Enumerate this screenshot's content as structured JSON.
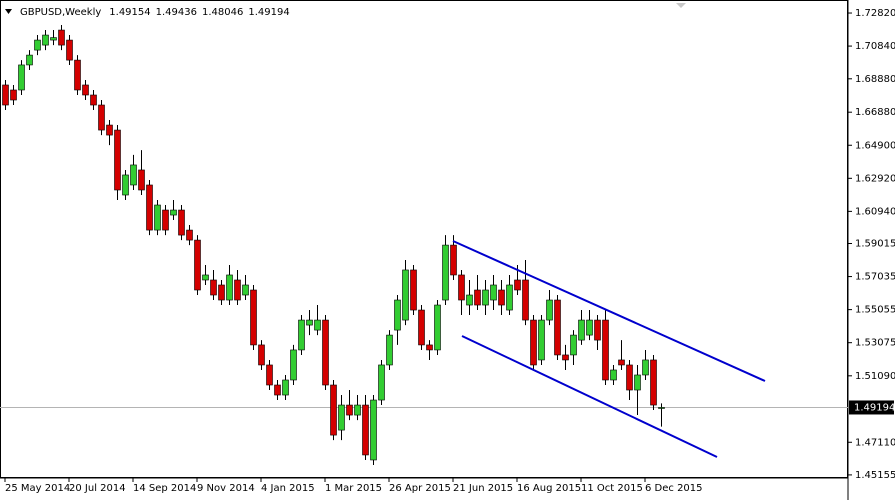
{
  "chart_data": {
    "type": "candlestick",
    "title": "GBPUSD,Weekly",
    "up_color": "#32cd32",
    "down_color": "#d40000",
    "categories": [
      "25 May 2014",
      null,
      null,
      null,
      null,
      null,
      null,
      null,
      "20 Jul 2014",
      null,
      null,
      null,
      null,
      null,
      null,
      null,
      "14 Sep 2014",
      null,
      null,
      null,
      null,
      null,
      null,
      null,
      "9 Nov 2014",
      null,
      null,
      null,
      null,
      null,
      null,
      null,
      "4 Jan 2015",
      null,
      null,
      null,
      null,
      null,
      null,
      null,
      "1 Mar 2015",
      null,
      null,
      null,
      null,
      null,
      null,
      null,
      "26 Apr 2015",
      null,
      null,
      null,
      null,
      null,
      null,
      null,
      "21 Jun 2015",
      null,
      null,
      null,
      null,
      null,
      null,
      null,
      "16 Aug 2015",
      null,
      null,
      null,
      null,
      null,
      null,
      null,
      "11 Oct 2015",
      null,
      null,
      null,
      null,
      null,
      null,
      null,
      "6 Dec 2015",
      null,
      null
    ],
    "open": [
      1.6851,
      1.6821,
      1.6821,
      1.6971,
      1.706,
      1.709,
      1.712,
      1.718,
      1.712,
      1.7,
      1.6851,
      1.6791,
      1.6731,
      1.6611,
      1.6581,
      1.6192,
      1.6252,
      1.6342,
      1.6252,
      1.5982,
      1.6102,
      1.6072,
      1.6102,
      1.5982,
      1.5922,
      1.5683,
      1.5683,
      1.5653,
      1.5563,
      1.5683,
      1.5593,
      1.5623,
      1.5294,
      1.5174,
      1.5054,
      1.4994,
      1.5084,
      1.5264,
      1.5413,
      1.5383,
      1.5443,
      1.5054,
      1.4784,
      1.4934,
      1.4874,
      1.4934,
      1.4605,
      1.4964,
      1.5174,
      1.5383,
      1.5443,
      1.5743,
      1.5503,
      1.5294,
      1.5264,
      1.5563,
      1.5892,
      1.5713,
      1.5533,
      1.5623,
      1.5533,
      1.5563,
      1.5623,
      1.5503,
      1.5683,
      1.5683,
      1.5443,
      1.5204,
      1.5443,
      1.5563,
      1.5234,
      1.5234,
      1.5323,
      1.5353,
      1.5443,
      1.5443,
      1.5084,
      1.5204,
      1.5174,
      1.5024,
      1.5114,
      1.5204,
      1.49154
    ],
    "high": [
      1.6881,
      1.6851,
      1.7,
      1.706,
      1.715,
      1.718,
      1.718,
      1.721,
      1.715,
      1.703,
      1.6881,
      1.6821,
      1.6761,
      1.6641,
      1.6611,
      1.6342,
      1.6432,
      1.6461,
      1.6282,
      1.6162,
      1.6132,
      1.6162,
      1.6132,
      1.6012,
      1.5952,
      1.5773,
      1.5743,
      1.5683,
      1.5773,
      1.5743,
      1.5713,
      1.5653,
      1.5323,
      1.5204,
      1.5084,
      1.5114,
      1.5294,
      1.5473,
      1.5503,
      1.5533,
      1.5473,
      1.5084,
      1.4994,
      1.5024,
      1.4994,
      1.4994,
      1.4994,
      1.5204,
      1.5383,
      1.5593,
      1.5803,
      1.5773,
      1.5533,
      1.5323,
      1.5563,
      1.5952,
      1.5952,
      1.5743,
      1.5683,
      1.5713,
      1.5683,
      1.5713,
      1.5683,
      1.5713,
      1.5773,
      1.5803,
      1.5473,
      1.5473,
      1.5623,
      1.5593,
      1.5294,
      1.5383,
      1.5503,
      1.5503,
      1.5473,
      1.5503,
      1.5174,
      1.5323,
      1.5204,
      1.5174,
      1.5264,
      1.5234,
      1.49436
    ],
    "low": [
      1.6701,
      1.6731,
      1.6791,
      1.6941,
      1.703,
      1.706,
      1.709,
      1.706,
      1.6971,
      1.6791,
      1.6761,
      1.6701,
      1.6551,
      1.6491,
      1.6162,
      1.6162,
      1.6222,
      1.6192,
      1.5952,
      1.5952,
      1.5952,
      1.6042,
      1.5922,
      1.5892,
      1.5593,
      1.5653,
      1.5563,
      1.5533,
      1.5533,
      1.5533,
      1.5563,
      1.5264,
      1.5144,
      1.5024,
      1.4964,
      1.4964,
      1.5054,
      1.5234,
      1.5353,
      1.5353,
      1.5024,
      1.4724,
      1.4724,
      1.4844,
      1.4844,
      1.4605,
      1.4575,
      1.4934,
      1.5144,
      1.5294,
      1.5413,
      1.5473,
      1.5264,
      1.5204,
      1.5234,
      1.5533,
      1.5683,
      1.5473,
      1.5473,
      1.5503,
      1.5473,
      1.5503,
      1.5473,
      1.5473,
      1.5593,
      1.5413,
      1.5144,
      1.5174,
      1.5413,
      1.5204,
      1.5144,
      1.5174,
      1.5294,
      1.5323,
      1.5264,
      1.5054,
      1.5054,
      1.5144,
      1.4964,
      1.4874,
      1.5084,
      1.4904,
      1.48046
    ],
    "close": [
      1.6731,
      1.6761,
      1.6971,
      1.703,
      1.712,
      1.715,
      1.7135,
      1.709,
      1.7,
      1.6821,
      1.6791,
      1.6731,
      1.6581,
      1.6551,
      1.6222,
      1.6312,
      1.6372,
      1.6222,
      1.5982,
      1.6132,
      1.5982,
      1.6102,
      1.5952,
      1.5922,
      1.5623,
      1.5713,
      1.5593,
      1.5563,
      1.5713,
      1.5563,
      1.5653,
      1.5294,
      1.5174,
      1.5054,
      1.4994,
      1.5084,
      1.5264,
      1.5443,
      1.5443,
      1.5443,
      1.5054,
      1.4754,
      1.4934,
      1.4874,
      1.4934,
      1.4635,
      1.4964,
      1.5174,
      1.5353,
      1.5563,
      1.5743,
      1.5503,
      1.5294,
      1.5264,
      1.5533,
      1.5892,
      1.5713,
      1.5563,
      1.5593,
      1.5533,
      1.5623,
      1.5653,
      1.5533,
      1.5653,
      1.5623,
      1.5443,
      1.5174,
      1.5443,
      1.5563,
      1.5234,
      1.5204,
      1.5353,
      1.5443,
      1.5443,
      1.5323,
      1.5084,
      1.5144,
      1.5174,
      1.5024,
      1.5114,
      1.5204,
      1.4934,
      1.49194
    ],
    "ylim": [
      1.4497,
      1.736
    ],
    "yticks": [
      {
        "value": 1.7282,
        "label": "1.72820"
      },
      {
        "value": 1.7084,
        "label": "1.70840"
      },
      {
        "value": 1.6888,
        "label": "1.68880"
      },
      {
        "value": 1.6688,
        "label": "1.66880"
      },
      {
        "value": 1.649,
        "label": "1.64900"
      },
      {
        "value": 1.6292,
        "label": "1.62920"
      },
      {
        "value": 1.6094,
        "label": "1.60940"
      },
      1.59015,
      1.57035,
      1.55055,
      1.53075,
      {
        "value": 1.5109,
        "label": "1.51090"
      },
      {
        "value": 1.4711,
        "label": "1.47110"
      },
      1.45155
    ],
    "grid": false
  }
}
